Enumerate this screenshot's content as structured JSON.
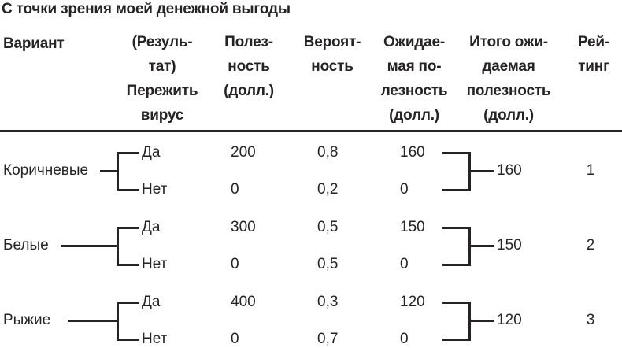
{
  "title": "С точки зрения моей денежной выгоды",
  "header": {
    "variant": "Вариант",
    "outcome": "(Резуль-\nтат)\nПережить\nвирус",
    "utility": "Полез-\nность\n(долл.)",
    "probability": "Вероят-\nность",
    "expected": "Ожидае-\nмая по-\nлезность\n(долл.)",
    "total": "Итого ожи-\nдаемая\nполезность\n(долл.)",
    "rating": "Рей-\nтинг"
  },
  "rows": [
    {
      "variant": "Коричневые",
      "branches": [
        {
          "outcome": "Да",
          "utility": "200",
          "probability": "0,8",
          "expected": "160"
        },
        {
          "outcome": "Нет",
          "utility": "0",
          "probability": "0,2",
          "expected": "0"
        }
      ],
      "total": "160",
      "rating": "1"
    },
    {
      "variant": "Белые",
      "branches": [
        {
          "outcome": "Да",
          "utility": "300",
          "probability": "0,5",
          "expected": "150"
        },
        {
          "outcome": "Нет",
          "utility": "0",
          "probability": "0,5",
          "expected": "0"
        }
      ],
      "total": "150",
      "rating": "2"
    },
    {
      "variant": "Рыжие",
      "branches": [
        {
          "outcome": "Да",
          "utility": "400",
          "probability": "0,3",
          "expected": "120"
        },
        {
          "outcome": "Нет",
          "utility": "0",
          "probability": "0,7",
          "expected": "0"
        }
      ],
      "total": "120",
      "rating": "3"
    }
  ],
  "colors": {
    "ink": "#262324",
    "background": "#ffffff"
  }
}
